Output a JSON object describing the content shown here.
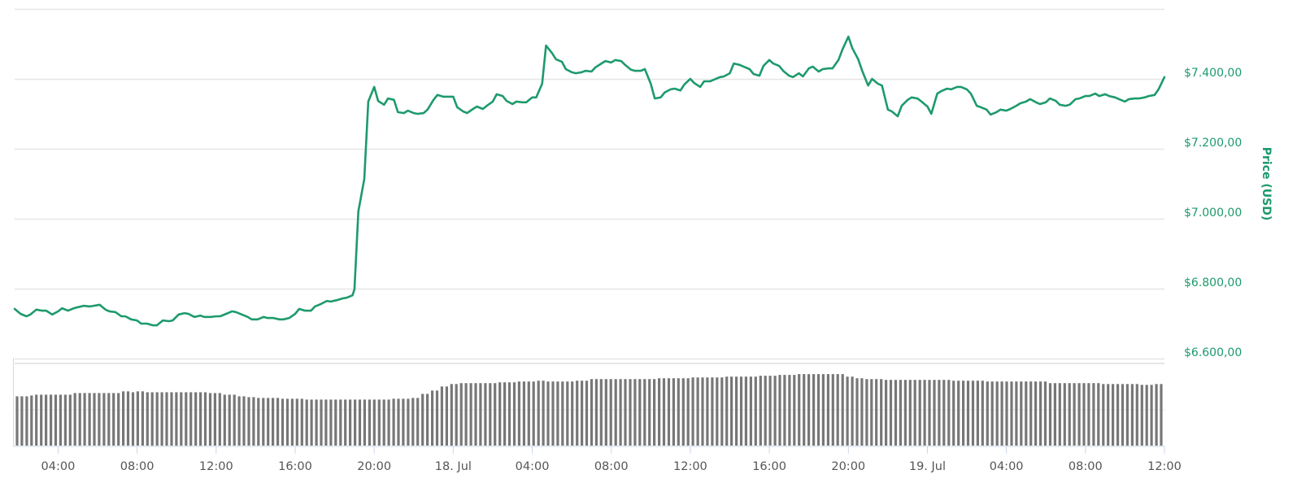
{
  "chart_data": {
    "type": "line",
    "title": "",
    "ylabel": "Price (USD)",
    "xlabel": "",
    "ylim": [
      6600,
      7600
    ],
    "grid": true,
    "legend": "none",
    "line_color": "#1d9a6c",
    "volume_color": "#777777",
    "y_ticks": [
      "$6.600,00",
      "$6.800,00",
      "$7.000,00",
      "$7.200,00",
      "$7.400,00"
    ],
    "y_tick_values": [
      6600,
      6800,
      7000,
      7200,
      7400
    ],
    "x_ticks": [
      "04:00",
      "08:00",
      "12:00",
      "16:00",
      "20:00",
      "18. Jul",
      "04:00",
      "08:00",
      "12:00",
      "16:00",
      "20:00",
      "19. Jul",
      "04:00",
      "08:00",
      "12:00"
    ],
    "x_tick_hours": [
      4,
      8,
      12,
      16,
      20,
      24,
      28,
      32,
      36,
      40,
      44,
      48,
      52,
      56,
      60
    ],
    "x_range_hours": [
      1.8,
      60.0
    ],
    "price_series": {
      "name": "Price (USD)",
      "points": [
        [
          1.8,
          6742
        ],
        [
          2.1,
          6728
        ],
        [
          2.4,
          6721
        ],
        [
          2.6,
          6726
        ],
        [
          2.9,
          6740
        ],
        [
          3.2,
          6737
        ],
        [
          3.4,
          6737
        ],
        [
          3.7,
          6726
        ],
        [
          4.0,
          6735
        ],
        [
          4.2,
          6744
        ],
        [
          4.5,
          6737
        ],
        [
          4.8,
          6744
        ],
        [
          5.0,
          6747
        ],
        [
          5.3,
          6751
        ],
        [
          5.6,
          6749
        ],
        [
          5.8,
          6751
        ],
        [
          6.1,
          6754
        ],
        [
          6.4,
          6740
        ],
        [
          6.6,
          6735
        ],
        [
          6.9,
          6733
        ],
        [
          7.2,
          6721
        ],
        [
          7.4,
          6721
        ],
        [
          7.7,
          6712
        ],
        [
          8.0,
          6709
        ],
        [
          8.2,
          6700
        ],
        [
          8.5,
          6700
        ],
        [
          8.8,
          6695
        ],
        [
          9.0,
          6695
        ],
        [
          9.3,
          6709
        ],
        [
          9.6,
          6707
        ],
        [
          9.8,
          6709
        ],
        [
          10.1,
          6726
        ],
        [
          10.4,
          6730
        ],
        [
          10.6,
          6728
        ],
        [
          10.9,
          6719
        ],
        [
          11.2,
          6723
        ],
        [
          11.4,
          6719
        ],
        [
          11.7,
          6719
        ],
        [
          12.0,
          6721
        ],
        [
          12.2,
          6721
        ],
        [
          12.5,
          6728
        ],
        [
          12.8,
          6735
        ],
        [
          13.0,
          6733
        ],
        [
          13.3,
          6726
        ],
        [
          13.6,
          6719
        ],
        [
          13.8,
          6712
        ],
        [
          14.1,
          6712
        ],
        [
          14.4,
          6719
        ],
        [
          14.6,
          6716
        ],
        [
          14.9,
          6716
        ],
        [
          15.2,
          6712
        ],
        [
          15.4,
          6712
        ],
        [
          15.7,
          6716
        ],
        [
          16.0,
          6728
        ],
        [
          16.2,
          6742
        ],
        [
          16.5,
          6737
        ],
        [
          16.8,
          6737
        ],
        [
          17.0,
          6749
        ],
        [
          17.3,
          6756
        ],
        [
          17.6,
          6765
        ],
        [
          17.8,
          6763
        ],
        [
          18.1,
          6767
        ],
        [
          18.4,
          6772
        ],
        [
          18.6,
          6774
        ],
        [
          18.9,
          6781
        ],
        [
          19.0,
          6798
        ],
        [
          19.2,
          7021
        ],
        [
          19.5,
          7114
        ],
        [
          19.7,
          7335
        ],
        [
          20.0,
          7377
        ],
        [
          20.2,
          7337
        ],
        [
          20.5,
          7326
        ],
        [
          20.7,
          7344
        ],
        [
          21.0,
          7340
        ],
        [
          21.2,
          7305
        ],
        [
          21.5,
          7302
        ],
        [
          21.7,
          7309
        ],
        [
          22.0,
          7302
        ],
        [
          22.2,
          7300
        ],
        [
          22.5,
          7302
        ],
        [
          22.7,
          7312
        ],
        [
          23.0,
          7340
        ],
        [
          23.2,
          7354
        ],
        [
          23.5,
          7349
        ],
        [
          23.7,
          7349
        ],
        [
          24.0,
          7349
        ],
        [
          24.2,
          7319
        ],
        [
          24.5,
          7307
        ],
        [
          24.7,
          7302
        ],
        [
          25.0,
          7314
        ],
        [
          25.2,
          7321
        ],
        [
          25.5,
          7314
        ],
        [
          25.7,
          7323
        ],
        [
          26.0,
          7335
        ],
        [
          26.2,
          7356
        ],
        [
          26.5,
          7351
        ],
        [
          26.7,
          7337
        ],
        [
          27.0,
          7328
        ],
        [
          27.2,
          7335
        ],
        [
          27.5,
          7333
        ],
        [
          27.7,
          7333
        ],
        [
          28.0,
          7347
        ],
        [
          28.2,
          7347
        ],
        [
          28.5,
          7386
        ],
        [
          28.7,
          7495
        ],
        [
          29.0,
          7474
        ],
        [
          29.2,
          7456
        ],
        [
          29.5,
          7449
        ],
        [
          29.7,
          7428
        ],
        [
          30.0,
          7419
        ],
        [
          30.2,
          7416
        ],
        [
          30.5,
          7419
        ],
        [
          30.7,
          7423
        ],
        [
          31.0,
          7421
        ],
        [
          31.2,
          7433
        ],
        [
          31.5,
          7444
        ],
        [
          31.7,
          7451
        ],
        [
          32.0,
          7447
        ],
        [
          32.2,
          7454
        ],
        [
          32.5,
          7451
        ],
        [
          32.7,
          7440
        ],
        [
          33.0,
          7426
        ],
        [
          33.2,
          7423
        ],
        [
          33.5,
          7423
        ],
        [
          33.7,
          7428
        ],
        [
          34.0,
          7386
        ],
        [
          34.2,
          7344
        ],
        [
          34.5,
          7347
        ],
        [
          34.7,
          7361
        ],
        [
          35.0,
          7370
        ],
        [
          35.2,
          7372
        ],
        [
          35.5,
          7367
        ],
        [
          35.7,
          7384
        ],
        [
          36.0,
          7400
        ],
        [
          36.2,
          7388
        ],
        [
          36.5,
          7377
        ],
        [
          36.7,
          7393
        ],
        [
          37.0,
          7393
        ],
        [
          37.2,
          7398
        ],
        [
          37.5,
          7405
        ],
        [
          37.7,
          7407
        ],
        [
          38.0,
          7416
        ],
        [
          38.2,
          7444
        ],
        [
          38.5,
          7440
        ],
        [
          38.7,
          7435
        ],
        [
          39.0,
          7428
        ],
        [
          39.2,
          7414
        ],
        [
          39.5,
          7409
        ],
        [
          39.7,
          7437
        ],
        [
          40.0,
          7454
        ],
        [
          40.2,
          7444
        ],
        [
          40.5,
          7437
        ],
        [
          40.7,
          7423
        ],
        [
          41.0,
          7409
        ],
        [
          41.2,
          7405
        ],
        [
          41.5,
          7416
        ],
        [
          41.7,
          7407
        ],
        [
          42.0,
          7430
        ],
        [
          42.2,
          7435
        ],
        [
          42.5,
          7421
        ],
        [
          42.7,
          7428
        ],
        [
          43.0,
          7430
        ],
        [
          43.2,
          7430
        ],
        [
          43.5,
          7454
        ],
        [
          43.7,
          7484
        ],
        [
          44.0,
          7521
        ],
        [
          44.2,
          7488
        ],
        [
          44.5,
          7456
        ],
        [
          44.7,
          7423
        ],
        [
          45.0,
          7381
        ],
        [
          45.2,
          7400
        ],
        [
          45.5,
          7386
        ],
        [
          45.7,
          7381
        ],
        [
          46.0,
          7312
        ],
        [
          46.2,
          7307
        ],
        [
          46.5,
          7293
        ],
        [
          46.7,
          7323
        ],
        [
          47.0,
          7340
        ],
        [
          47.2,
          7347
        ],
        [
          47.5,
          7344
        ],
        [
          47.7,
          7335
        ],
        [
          48.0,
          7321
        ],
        [
          48.2,
          7300
        ],
        [
          48.5,
          7358
        ],
        [
          48.7,
          7365
        ],
        [
          49.0,
          7372
        ],
        [
          49.2,
          7370
        ],
        [
          49.5,
          7377
        ],
        [
          49.7,
          7377
        ],
        [
          50.0,
          7370
        ],
        [
          50.2,
          7358
        ],
        [
          50.5,
          7323
        ],
        [
          50.7,
          7319
        ],
        [
          51.0,
          7312
        ],
        [
          51.2,
          7298
        ],
        [
          51.5,
          7305
        ],
        [
          51.7,
          7312
        ],
        [
          52.0,
          7309
        ],
        [
          52.2,
          7314
        ],
        [
          52.5,
          7323
        ],
        [
          52.7,
          7330
        ],
        [
          53.0,
          7335
        ],
        [
          53.2,
          7342
        ],
        [
          53.5,
          7333
        ],
        [
          53.7,
          7328
        ],
        [
          54.0,
          7333
        ],
        [
          54.2,
          7344
        ],
        [
          54.5,
          7337
        ],
        [
          54.7,
          7326
        ],
        [
          55.0,
          7323
        ],
        [
          55.2,
          7326
        ],
        [
          55.5,
          7342
        ],
        [
          55.7,
          7344
        ],
        [
          56.0,
          7351
        ],
        [
          56.2,
          7351
        ],
        [
          56.5,
          7358
        ],
        [
          56.7,
          7351
        ],
        [
          57.0,
          7356
        ],
        [
          57.2,
          7351
        ],
        [
          57.5,
          7347
        ],
        [
          57.7,
          7342
        ],
        [
          58.0,
          7335
        ],
        [
          58.2,
          7342
        ],
        [
          58.5,
          7344
        ],
        [
          58.7,
          7344
        ],
        [
          59.0,
          7347
        ],
        [
          59.2,
          7351
        ],
        [
          59.5,
          7354
        ],
        [
          59.7,
          7370
        ],
        [
          60.0,
          7405
        ]
      ]
    },
    "volume_series": {
      "name": "Volume",
      "bar_count": 238,
      "relative_levels": [
        [
          0,
          0.6
        ],
        [
          3,
          0.61
        ],
        [
          4,
          0.62
        ],
        [
          12,
          0.64
        ],
        [
          22,
          0.66
        ],
        [
          24,
          0.65
        ],
        [
          25,
          0.66
        ],
        [
          27,
          0.65
        ],
        [
          40,
          0.64
        ],
        [
          43,
          0.62
        ],
        [
          46,
          0.6
        ],
        [
          48,
          0.59
        ],
        [
          50,
          0.58
        ],
        [
          55,
          0.57
        ],
        [
          60,
          0.56
        ],
        [
          78,
          0.57
        ],
        [
          82,
          0.58
        ],
        [
          84,
          0.63
        ],
        [
          86,
          0.67
        ],
        [
          88,
          0.72
        ],
        [
          90,
          0.75
        ],
        [
          92,
          0.76
        ],
        [
          100,
          0.77
        ],
        [
          104,
          0.78
        ],
        [
          108,
          0.79
        ],
        [
          110,
          0.78
        ],
        [
          116,
          0.79
        ],
        [
          119,
          0.81
        ],
        [
          133,
          0.82
        ],
        [
          140,
          0.83
        ],
        [
          147,
          0.84
        ],
        [
          154,
          0.85
        ],
        [
          158,
          0.86
        ],
        [
          162,
          0.87
        ],
        [
          172,
          0.84
        ],
        [
          174,
          0.82
        ],
        [
          176,
          0.81
        ],
        [
          180,
          0.8
        ],
        [
          194,
          0.79
        ],
        [
          201,
          0.78
        ],
        [
          214,
          0.76
        ],
        [
          225,
          0.75
        ],
        [
          233,
          0.74
        ],
        [
          236,
          0.75
        ]
      ]
    }
  },
  "axis": {
    "y_title": "Price (USD)"
  }
}
